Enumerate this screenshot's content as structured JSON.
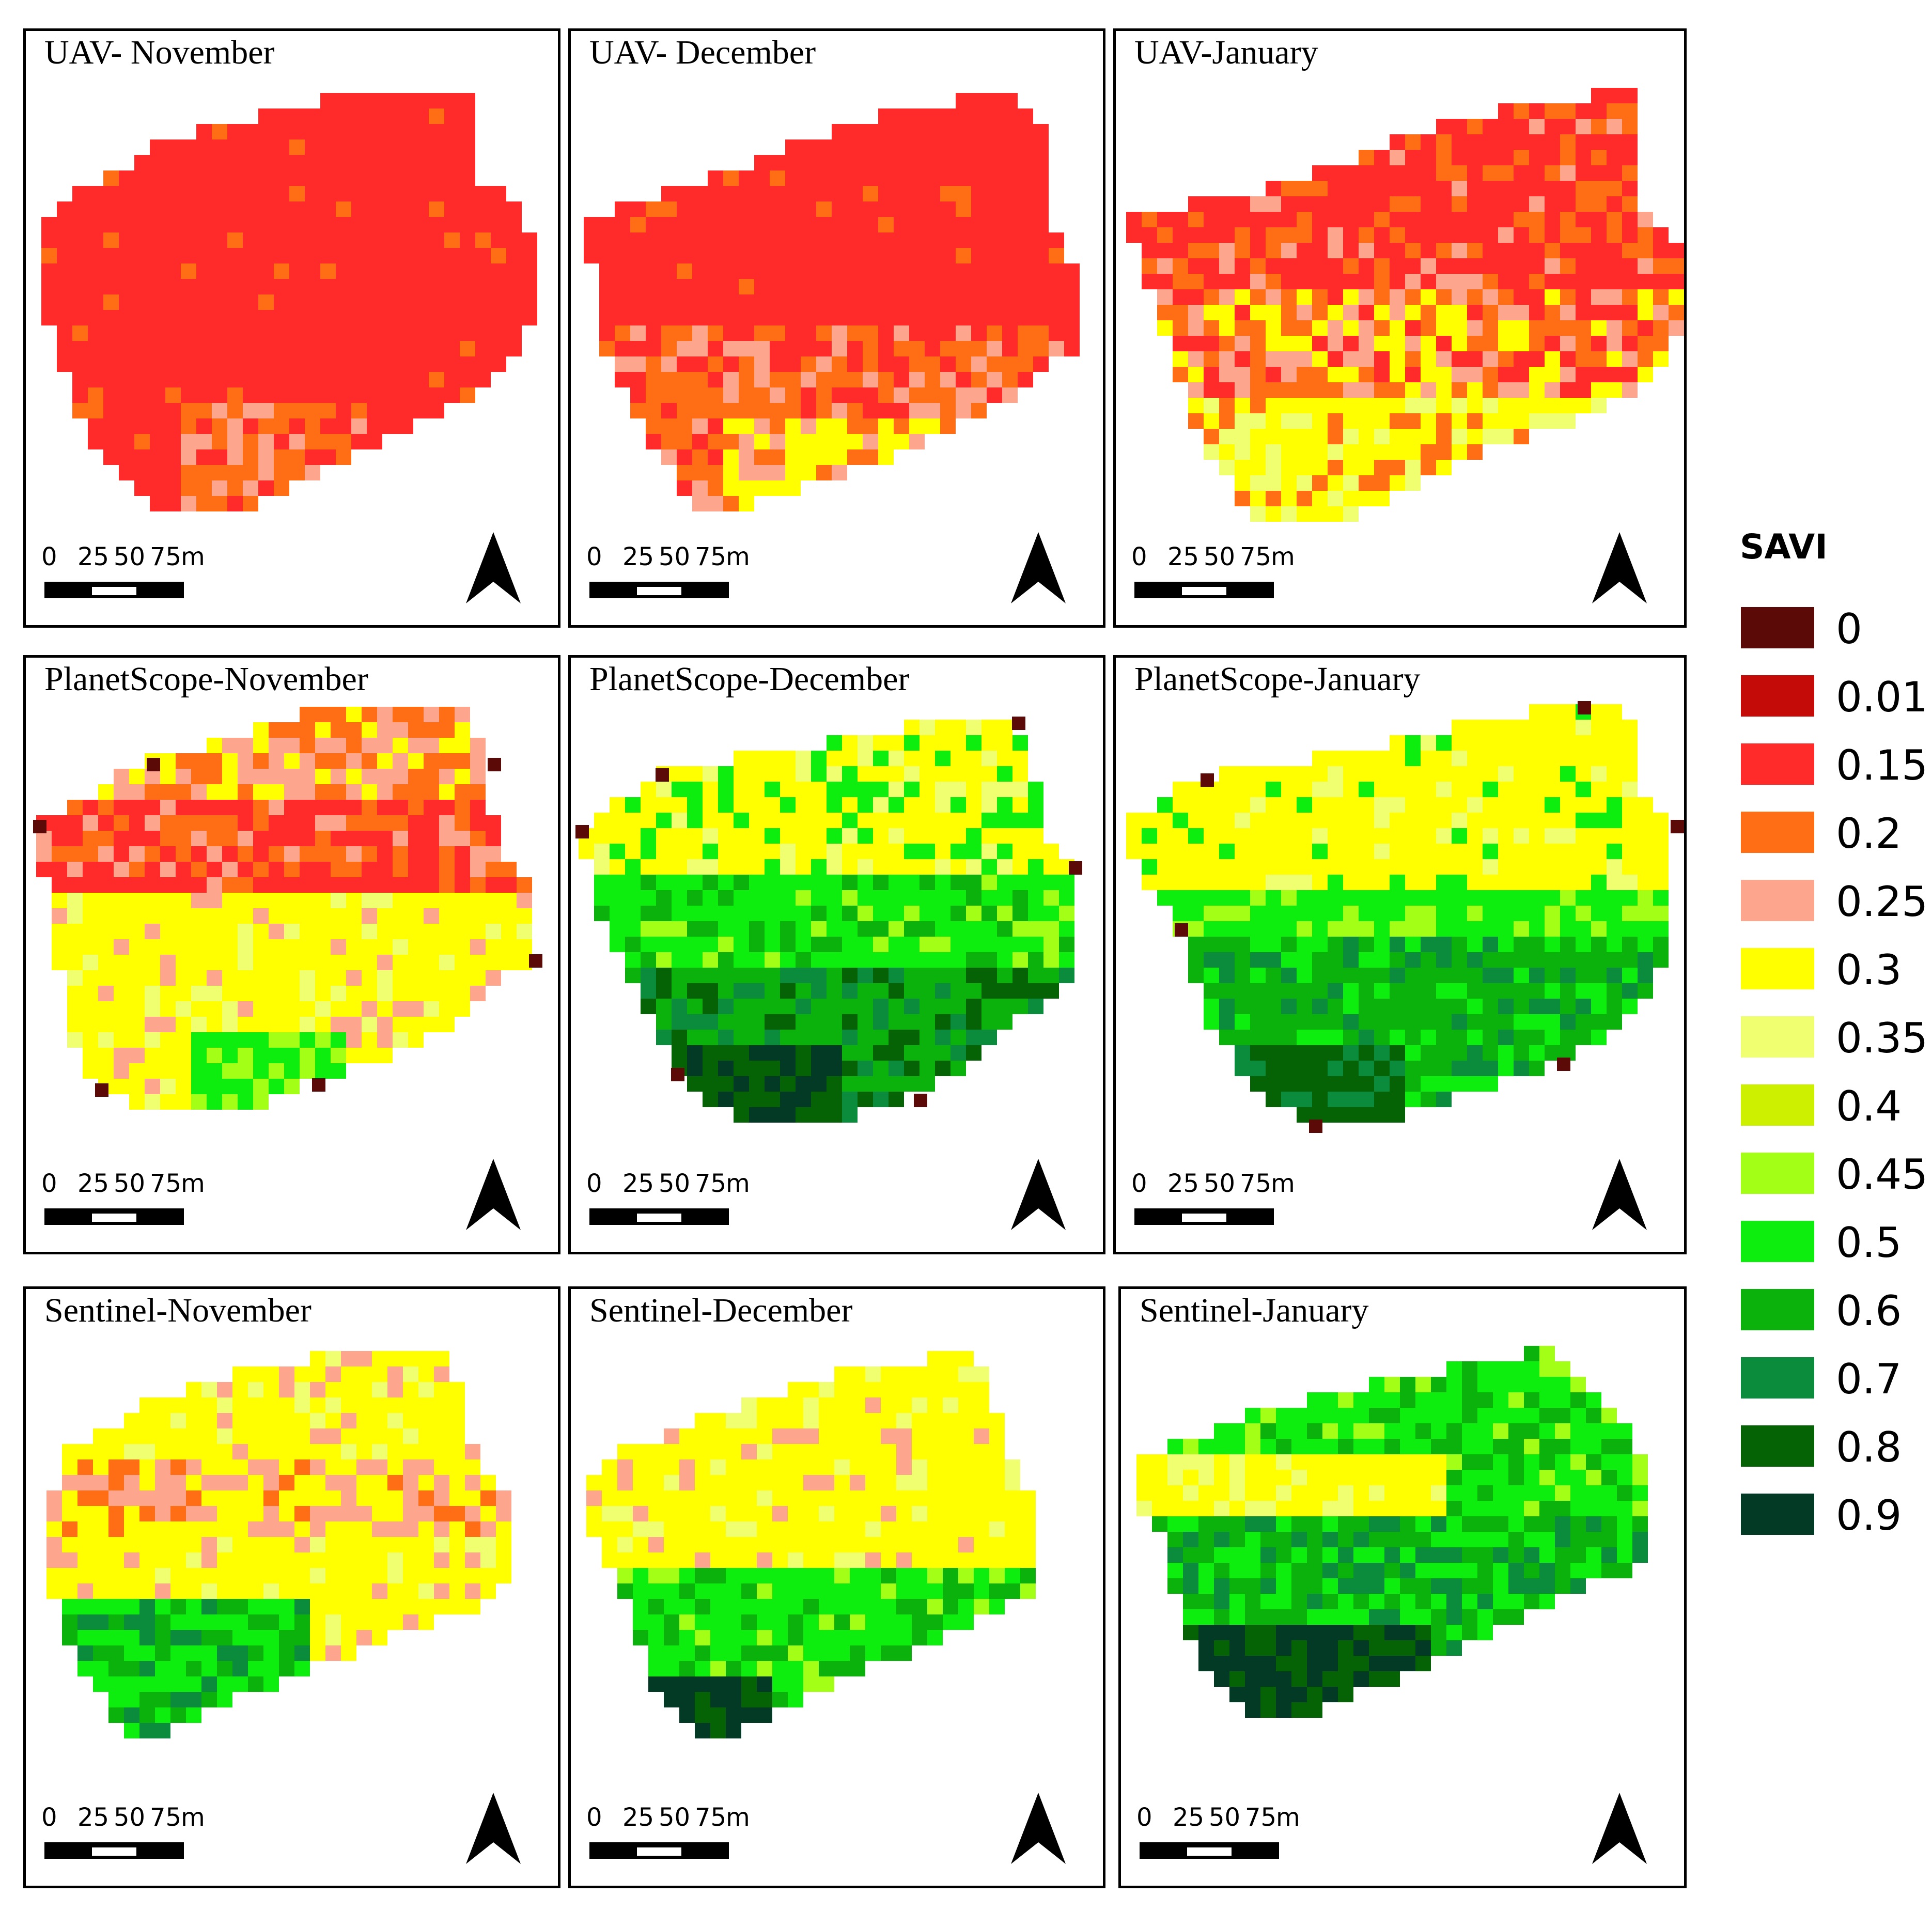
{
  "figure": {
    "panels": [
      {
        "title": "UAV- November",
        "sensor": "UAV",
        "month": "November"
      },
      {
        "title": "UAV- December",
        "sensor": "UAV",
        "month": "December"
      },
      {
        "title": "UAV-January",
        "sensor": "UAV",
        "month": "January"
      },
      {
        "title": "PlanetScope-November",
        "sensor": "PlanetScope",
        "month": "November"
      },
      {
        "title": "PlanetScope-December",
        "sensor": "PlanetScope",
        "month": "December"
      },
      {
        "title": "PlanetScope-January",
        "sensor": "PlanetScope",
        "month": "January"
      },
      {
        "title": "Sentinel-November",
        "sensor": "Sentinel",
        "month": "November"
      },
      {
        "title": "Sentinel-December",
        "sensor": "Sentinel",
        "month": "December"
      },
      {
        "title": "Sentinel-January",
        "sensor": "Sentinel",
        "month": "January"
      }
    ],
    "scale_bar": {
      "ticks": [
        "0",
        "25",
        "50",
        "75"
      ],
      "unit": "m"
    }
  },
  "legend": {
    "title": "SAVI",
    "classes": [
      {
        "label": "0",
        "color": "#5c0a08"
      },
      {
        "label": "0.01",
        "color": "#c40b08"
      },
      {
        "label": "0.15",
        "color": "#ff2a2a"
      },
      {
        "label": "0.2",
        "color": "#ff6e14"
      },
      {
        "label": "0.25",
        "color": "#fea58e"
      },
      {
        "label": "0.3",
        "color": "#ffff00"
      },
      {
        "label": "0.35",
        "color": "#f0ff70"
      },
      {
        "label": "0.4",
        "color": "#ccf000"
      },
      {
        "label": "0.45",
        "color": "#a4ff16"
      },
      {
        "label": "0.5",
        "color": "#0eee0e"
      },
      {
        "label": "0.6",
        "color": "#0cb20c"
      },
      {
        "label": "0.7",
        "color": "#0a8c3c"
      },
      {
        "label": "0.8",
        "color": "#056205"
      },
      {
        "label": "0.9",
        "color": "#023a25"
      }
    ]
  }
}
